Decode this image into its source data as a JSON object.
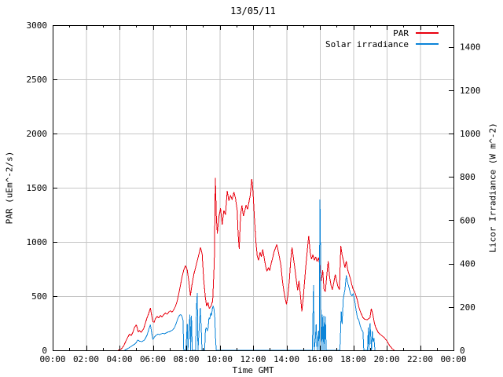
{
  "title": "13/05/11",
  "colors": {
    "par": "#e8000e",
    "solar": "#0b84d8",
    "grid": "#c6c6c6",
    "axis": "#000000",
    "background": "#ffffff"
  },
  "legend": [
    {
      "label": "PAR",
      "color_key": "par"
    },
    {
      "label": "Solar irradiance",
      "color_key": "solar"
    }
  ],
  "axes": {
    "x": {
      "label": "Time GMT",
      "range_hours": [
        0,
        24
      ],
      "major_tick_hours": [
        0,
        2,
        4,
        6,
        8,
        10,
        12,
        14,
        16,
        18,
        20,
        22,
        24
      ],
      "major_tick_labels": [
        "00:00",
        "02:00",
        "04:00",
        "06:00",
        "08:00",
        "10:00",
        "12:00",
        "14:00",
        "16:00",
        "18:00",
        "20:00",
        "22:00",
        "00:00"
      ],
      "minor_tick_hours": [
        1,
        3,
        5,
        7,
        9,
        11,
        13,
        15,
        17,
        19,
        21,
        23
      ]
    },
    "y_left": {
      "label": "PAR (uEm^-2/s)",
      "range": [
        0,
        3000
      ],
      "ticks": [
        0,
        500,
        1000,
        1500,
        2000,
        2500,
        3000
      ]
    },
    "y_right": {
      "label": "Licor Irradiance (W m^-2)",
      "range": [
        0,
        1500
      ],
      "ticks": [
        0,
        200,
        400,
        600,
        800,
        1000,
        1200,
        1400
      ]
    }
  },
  "chart_data": {
    "type": "line",
    "title": "13/05/11",
    "xlabel": "Time GMT",
    "ylabel_left": "PAR (uEm^-2/s)",
    "ylabel_right": "Licor Irradiance (W m^-2)",
    "x_unit": "hours_gmt",
    "x_range": [
      0,
      24
    ],
    "y_left_range": [
      0,
      3000
    ],
    "y_right_range": [
      0,
      1500
    ],
    "grid": true,
    "legend_position": "top-right-inside",
    "grid_y_values_left_axis": [
      500,
      1000,
      1500,
      2000,
      2500
    ],
    "grid_x_hours": [
      2,
      4,
      6,
      8,
      10,
      12,
      14,
      16,
      18,
      20,
      22
    ],
    "series": [
      {
        "name": "PAR",
        "axis": "left",
        "color_key": "par",
        "points": [
          [
            3.9,
            0
          ],
          [
            4.1,
            10
          ],
          [
            4.25,
            40
          ],
          [
            4.4,
            90
          ],
          [
            4.5,
            120
          ],
          [
            4.6,
            150
          ],
          [
            4.7,
            135
          ],
          [
            4.8,
            165
          ],
          [
            4.9,
            210
          ],
          [
            5.0,
            235
          ],
          [
            5.05,
            215
          ],
          [
            5.12,
            170
          ],
          [
            5.2,
            182
          ],
          [
            5.3,
            165
          ],
          [
            5.45,
            200
          ],
          [
            5.55,
            250
          ],
          [
            5.65,
            300
          ],
          [
            5.75,
            340
          ],
          [
            5.85,
            390
          ],
          [
            5.92,
            330
          ],
          [
            6.0,
            265
          ],
          [
            6.08,
            258
          ],
          [
            6.15,
            292
          ],
          [
            6.25,
            312
          ],
          [
            6.35,
            298
          ],
          [
            6.45,
            322
          ],
          [
            6.55,
            308
          ],
          [
            6.65,
            330
          ],
          [
            6.75,
            345
          ],
          [
            6.85,
            332
          ],
          [
            6.95,
            352
          ],
          [
            7.05,
            365
          ],
          [
            7.15,
            352
          ],
          [
            7.25,
            375
          ],
          [
            7.35,
            405
          ],
          [
            7.45,
            450
          ],
          [
            7.55,
            520
          ],
          [
            7.65,
            600
          ],
          [
            7.75,
            680
          ],
          [
            7.85,
            740
          ],
          [
            7.95,
            780
          ],
          [
            8.05,
            745
          ],
          [
            8.15,
            640
          ],
          [
            8.25,
            505
          ],
          [
            8.35,
            610
          ],
          [
            8.45,
            700
          ],
          [
            8.55,
            760
          ],
          [
            8.65,
            820
          ],
          [
            8.75,
            880
          ],
          [
            8.85,
            950
          ],
          [
            8.95,
            890
          ],
          [
            9.05,
            640
          ],
          [
            9.15,
            480
          ],
          [
            9.22,
            408
          ],
          [
            9.3,
            442
          ],
          [
            9.38,
            385
          ],
          [
            9.48,
            408
          ],
          [
            9.58,
            455
          ],
          [
            9.68,
            820
          ],
          [
            9.74,
            1590
          ],
          [
            9.8,
            1230
          ],
          [
            9.86,
            1075
          ],
          [
            9.95,
            1230
          ],
          [
            10.05,
            1310
          ],
          [
            10.15,
            1160
          ],
          [
            10.25,
            1290
          ],
          [
            10.35,
            1250
          ],
          [
            10.45,
            1470
          ],
          [
            10.55,
            1380
          ],
          [
            10.65,
            1430
          ],
          [
            10.75,
            1390
          ],
          [
            10.85,
            1460
          ],
          [
            10.95,
            1400
          ],
          [
            11.05,
            1290
          ],
          [
            11.1,
            1080
          ],
          [
            11.17,
            935
          ],
          [
            11.25,
            1250
          ],
          [
            11.33,
            1335
          ],
          [
            11.42,
            1240
          ],
          [
            11.5,
            1285
          ],
          [
            11.58,
            1340
          ],
          [
            11.67,
            1300
          ],
          [
            11.75,
            1365
          ],
          [
            11.83,
            1430
          ],
          [
            11.92,
            1580
          ],
          [
            11.97,
            1515
          ],
          [
            12.02,
            1400
          ],
          [
            12.08,
            1225
          ],
          [
            12.17,
            1000
          ],
          [
            12.25,
            870
          ],
          [
            12.33,
            830
          ],
          [
            12.42,
            905
          ],
          [
            12.5,
            862
          ],
          [
            12.58,
            930
          ],
          [
            12.67,
            850
          ],
          [
            12.75,
            780
          ],
          [
            12.83,
            730
          ],
          [
            12.92,
            762
          ],
          [
            13.0,
            735
          ],
          [
            13.08,
            800
          ],
          [
            13.17,
            852
          ],
          [
            13.25,
            905
          ],
          [
            13.33,
            940
          ],
          [
            13.42,
            975
          ],
          [
            13.5,
            920
          ],
          [
            13.58,
            858
          ],
          [
            13.67,
            780
          ],
          [
            13.75,
            650
          ],
          [
            13.83,
            560
          ],
          [
            13.92,
            480
          ],
          [
            14.0,
            425
          ],
          [
            14.08,
            500
          ],
          [
            14.17,
            640
          ],
          [
            14.25,
            820
          ],
          [
            14.33,
            950
          ],
          [
            14.42,
            850
          ],
          [
            14.5,
            760
          ],
          [
            14.58,
            660
          ],
          [
            14.67,
            555
          ],
          [
            14.75,
            640
          ],
          [
            14.83,
            520
          ],
          [
            14.92,
            360
          ],
          [
            15.0,
            480
          ],
          [
            15.08,
            620
          ],
          [
            15.17,
            800
          ],
          [
            15.25,
            930
          ],
          [
            15.33,
            1055
          ],
          [
            15.42,
            900
          ],
          [
            15.5,
            840
          ],
          [
            15.58,
            882
          ],
          [
            15.67,
            830
          ],
          [
            15.75,
            862
          ],
          [
            15.83,
            820
          ],
          [
            15.92,
            855
          ],
          [
            16.0,
            775
          ],
          [
            16.08,
            640
          ],
          [
            16.17,
            740
          ],
          [
            16.25,
            560
          ],
          [
            16.33,
            540
          ],
          [
            16.42,
            700
          ],
          [
            16.5,
            820
          ],
          [
            16.58,
            680
          ],
          [
            16.67,
            600
          ],
          [
            16.75,
            558
          ],
          [
            16.83,
            620
          ],
          [
            16.92,
            700
          ],
          [
            17.0,
            640
          ],
          [
            17.08,
            590
          ],
          [
            17.17,
            560
          ],
          [
            17.25,
            962
          ],
          [
            17.33,
            880
          ],
          [
            17.42,
            820
          ],
          [
            17.5,
            762
          ],
          [
            17.58,
            822
          ],
          [
            17.67,
            740
          ],
          [
            17.75,
            700
          ],
          [
            17.83,
            660
          ],
          [
            17.92,
            600
          ],
          [
            18.0,
            560
          ],
          [
            18.08,
            540
          ],
          [
            18.17,
            500
          ],
          [
            18.25,
            460
          ],
          [
            18.33,
            400
          ],
          [
            18.42,
            358
          ],
          [
            18.5,
            330
          ],
          [
            18.58,
            302
          ],
          [
            18.67,
            288
          ],
          [
            18.83,
            282
          ],
          [
            19.0,
            300
          ],
          [
            19.08,
            385
          ],
          [
            19.17,
            330
          ],
          [
            19.25,
            262
          ],
          [
            19.33,
            215
          ],
          [
            19.5,
            162
          ],
          [
            19.67,
            140
          ],
          [
            19.83,
            120
          ],
          [
            20.0,
            90
          ],
          [
            20.17,
            45
          ],
          [
            20.33,
            15
          ],
          [
            20.45,
            0
          ]
        ]
      },
      {
        "name": "Solar irradiance",
        "axis": "right",
        "color_key": "solar",
        "points": [
          [
            4.3,
            0
          ],
          [
            4.5,
            8
          ],
          [
            4.7,
            18
          ],
          [
            4.9,
            28
          ],
          [
            5.0,
            36
          ],
          [
            5.1,
            48
          ],
          [
            5.2,
            42
          ],
          [
            5.35,
            40
          ],
          [
            5.5,
            48
          ],
          [
            5.65,
            70
          ],
          [
            5.75,
            95
          ],
          [
            5.85,
            118
          ],
          [
            5.95,
            72
          ],
          [
            6.0,
            50
          ],
          [
            6.1,
            62
          ],
          [
            6.2,
            70
          ],
          [
            6.3,
            75
          ],
          [
            6.4,
            72
          ],
          [
            6.5,
            76
          ],
          [
            6.6,
            78
          ],
          [
            6.7,
            76
          ],
          [
            6.8,
            80
          ],
          [
            6.9,
            84
          ],
          [
            7.0,
            86
          ],
          [
            7.1,
            90
          ],
          [
            7.2,
            95
          ],
          [
            7.3,
            105
          ],
          [
            7.4,
            125
          ],
          [
            7.5,
            148
          ],
          [
            7.6,
            162
          ],
          [
            7.67,
            165
          ],
          [
            7.75,
            155
          ],
          [
            7.8,
            138
          ],
          [
            7.85,
            0
          ],
          [
            7.97,
            0
          ],
          [
            8.02,
            60
          ],
          [
            8.06,
            122
          ],
          [
            8.1,
            0
          ],
          [
            8.16,
            100
          ],
          [
            8.22,
            165
          ],
          [
            8.26,
            0
          ],
          [
            8.31,
            160
          ],
          [
            8.36,
            0
          ],
          [
            8.56,
            0
          ],
          [
            8.61,
            200
          ],
          [
            8.66,
            265
          ],
          [
            8.7,
            0
          ],
          [
            8.84,
            195
          ],
          [
            8.9,
            100
          ],
          [
            8.94,
            0
          ],
          [
            9.1,
            0
          ],
          [
            9.15,
            95
          ],
          [
            9.2,
            105
          ],
          [
            9.26,
            90
          ],
          [
            9.31,
            102
          ],
          [
            9.36,
            150
          ],
          [
            9.41,
            145
          ],
          [
            9.46,
            172
          ],
          [
            9.51,
            160
          ],
          [
            9.56,
            192
          ],
          [
            9.61,
            205
          ],
          [
            9.66,
            190
          ],
          [
            9.71,
            150
          ],
          [
            9.76,
            40
          ],
          [
            9.8,
            0
          ],
          [
            15.55,
            0
          ],
          [
            15.62,
            300
          ],
          [
            15.66,
            0
          ],
          [
            15.73,
            55
          ],
          [
            15.78,
            120
          ],
          [
            15.83,
            0
          ],
          [
            15.92,
            90
          ],
          [
            15.96,
            0
          ],
          [
            16.0,
            695
          ],
          [
            16.03,
            595
          ],
          [
            16.06,
            160
          ],
          [
            16.09,
            0
          ],
          [
            16.15,
            165
          ],
          [
            16.19,
            0
          ],
          [
            16.24,
            160
          ],
          [
            16.28,
            0
          ],
          [
            16.33,
            155
          ],
          [
            16.38,
            0
          ],
          [
            17.2,
            0
          ],
          [
            17.28,
            180
          ],
          [
            17.33,
            122
          ],
          [
            17.4,
            240
          ],
          [
            17.5,
            280
          ],
          [
            17.58,
            345
          ],
          [
            17.67,
            310
          ],
          [
            17.75,
            288
          ],
          [
            17.83,
            262
          ],
          [
            17.92,
            250
          ],
          [
            18.0,
            262
          ],
          [
            18.08,
            230
          ],
          [
            18.17,
            185
          ],
          [
            18.25,
            150
          ],
          [
            18.33,
            140
          ],
          [
            18.42,
            112
          ],
          [
            18.5,
            95
          ],
          [
            18.58,
            85
          ],
          [
            18.63,
            0
          ],
          [
            18.85,
            0
          ],
          [
            18.9,
            105
          ],
          [
            18.94,
            0
          ],
          [
            19.0,
            125
          ],
          [
            19.05,
            60
          ],
          [
            19.09,
            0
          ],
          [
            19.14,
            88
          ],
          [
            19.18,
            40
          ],
          [
            19.24,
            55
          ],
          [
            19.3,
            0
          ]
        ]
      }
    ]
  }
}
